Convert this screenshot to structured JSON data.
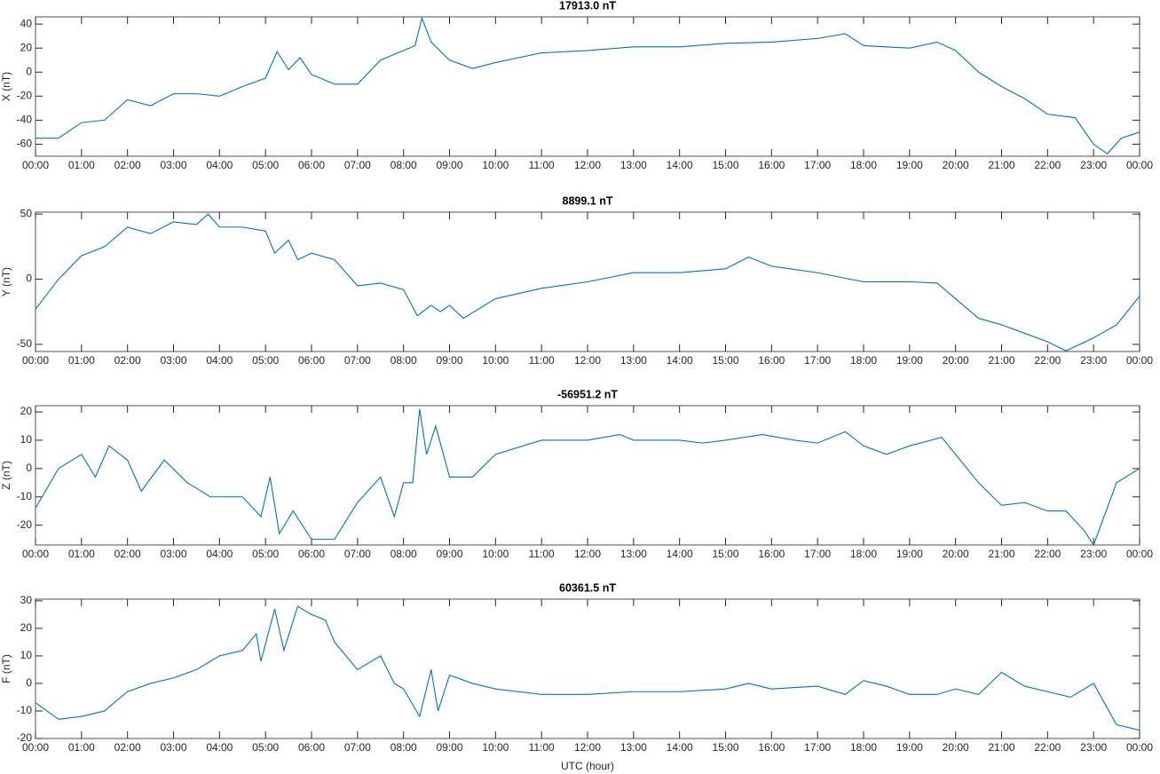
{
  "chart_data": [
    {
      "type": "line",
      "title": "17913.0 nT",
      "ylabel": "X (nT)",
      "color": "#0072bd",
      "x": [
        0,
        0.5,
        1,
        1.5,
        2,
        2.5,
        3,
        3.5,
        4,
        4.5,
        5,
        5.25,
        5.5,
        5.75,
        6,
        6.5,
        7,
        7.5,
        8,
        8.25,
        8.4,
        8.6,
        9,
        9.5,
        10,
        10.5,
        11,
        12,
        13,
        14,
        15,
        16,
        17,
        17.6,
        18,
        19,
        19.6,
        20,
        20.5,
        21,
        21.5,
        22,
        22.6,
        23,
        23.3,
        23.6,
        24
      ],
      "series": [
        {
          "name": "X",
          "color": "#0072bd",
          "values": [
            -55,
            -55,
            -42,
            -40,
            -23,
            -28,
            -18,
            -18,
            -20,
            -12,
            -5,
            17,
            2,
            12,
            -2,
            -10,
            -10,
            10,
            18,
            22,
            45,
            25,
            10,
            3,
            8,
            12,
            16,
            18,
            21,
            21,
            24,
            25,
            28,
            32,
            22,
            20,
            25,
            18,
            0,
            -12,
            -22,
            -35,
            -38,
            -60,
            -68,
            -55,
            -50
          ]
        }
      ],
      "xlim": [
        0,
        24
      ],
      "ylim": [
        -70,
        46
      ],
      "yticks": [
        -60,
        -40,
        -20,
        0,
        20,
        40
      ],
      "xticks": [
        {
          "value": 0,
          "label": "00:00"
        },
        {
          "value": 1,
          "label": "01:00"
        },
        {
          "value": 2,
          "label": "02:00"
        },
        {
          "value": 3,
          "label": "03:00"
        },
        {
          "value": 4,
          "label": "04:00"
        },
        {
          "value": 5,
          "label": "05:00"
        },
        {
          "value": 6,
          "label": "06:00"
        },
        {
          "value": 7,
          "label": "07:00"
        },
        {
          "value": 8,
          "label": "08:00"
        },
        {
          "value": 9,
          "label": "09:00"
        },
        {
          "value": 10,
          "label": "10:00"
        },
        {
          "value": 11,
          "label": "11:00"
        },
        {
          "value": 12,
          "label": "12:00"
        },
        {
          "value": 13,
          "label": "13:00"
        },
        {
          "value": 14,
          "label": "14:00"
        },
        {
          "value": 15,
          "label": "15:00"
        },
        {
          "value": 16,
          "label": "16:00"
        },
        {
          "value": 17,
          "label": "17:00"
        },
        {
          "value": 18,
          "label": "18:00"
        },
        {
          "value": 19,
          "label": "19:00"
        },
        {
          "value": 20,
          "label": "20:00"
        },
        {
          "value": 21,
          "label": "21:00"
        },
        {
          "value": 22,
          "label": "22:00"
        },
        {
          "value": 23,
          "label": "23:00"
        },
        {
          "value": 24,
          "label": "00:00"
        }
      ]
    },
    {
      "type": "line",
      "title": "8899.1 nT",
      "ylabel": "Y (nT)",
      "color": "#0072bd",
      "x": [
        0,
        0.5,
        1,
        1.5,
        2,
        2.5,
        3,
        3.5,
        3.75,
        4,
        4.5,
        5,
        5.2,
        5.5,
        5.7,
        6,
        6.5,
        7,
        7.5,
        8,
        8.3,
        8.6,
        8.8,
        9,
        9.3,
        10,
        11,
        12,
        13,
        14,
        15,
        15.5,
        16,
        17,
        18,
        19,
        19.6,
        20,
        20.5,
        21,
        22,
        22.4,
        23,
        23.5,
        24
      ],
      "series": [
        {
          "name": "Y",
          "color": "#0072bd",
          "values": [
            -23,
            0,
            18,
            25,
            40,
            35,
            44,
            42,
            50,
            40,
            40,
            37,
            20,
            30,
            15,
            20,
            15,
            -5,
            -3,
            -8,
            -28,
            -20,
            -25,
            -20,
            -30,
            -15,
            -7,
            -2,
            5,
            5,
            8,
            17,
            10,
            5,
            -2,
            -2,
            -3,
            -15,
            -30,
            -35,
            -48,
            -55,
            -45,
            -35,
            -13
          ]
        }
      ],
      "xlim": [
        0,
        24
      ],
      "ylim": [
        -55.5,
        51.5
      ],
      "yticks": [
        -50,
        0,
        50
      ],
      "xticks": [
        {
          "value": 0,
          "label": "00:00"
        },
        {
          "value": 1,
          "label": "01:00"
        },
        {
          "value": 2,
          "label": "02:00"
        },
        {
          "value": 3,
          "label": "03:00"
        },
        {
          "value": 4,
          "label": "04:00"
        },
        {
          "value": 5,
          "label": "05:00"
        },
        {
          "value": 6,
          "label": "06:00"
        },
        {
          "value": 7,
          "label": "07:00"
        },
        {
          "value": 8,
          "label": "08:00"
        },
        {
          "value": 9,
          "label": "09:00"
        },
        {
          "value": 10,
          "label": "10:00"
        },
        {
          "value": 11,
          "label": "11:00"
        },
        {
          "value": 12,
          "label": "12:00"
        },
        {
          "value": 13,
          "label": "13:00"
        },
        {
          "value": 14,
          "label": "14:00"
        },
        {
          "value": 15,
          "label": "15:00"
        },
        {
          "value": 16,
          "label": "16:00"
        },
        {
          "value": 17,
          "label": "17:00"
        },
        {
          "value": 18,
          "label": "18:00"
        },
        {
          "value": 19,
          "label": "19:00"
        },
        {
          "value": 20,
          "label": "20:00"
        },
        {
          "value": 21,
          "label": "21:00"
        },
        {
          "value": 22,
          "label": "22:00"
        },
        {
          "value": 23,
          "label": "23:00"
        },
        {
          "value": 24,
          "label": "00:00"
        }
      ]
    },
    {
      "type": "line",
      "title": "-56951.2 nT",
      "ylabel": "Z (nT)",
      "color": "#0072bd",
      "x": [
        0,
        0.5,
        1,
        1.3,
        1.6,
        2,
        2.3,
        2.8,
        3.3,
        3.8,
        4.5,
        4.9,
        5.1,
        5.3,
        5.6,
        6,
        6.5,
        7,
        7.5,
        7.8,
        8,
        8.2,
        8.35,
        8.5,
        8.7,
        9,
        9.5,
        10,
        11,
        12,
        12.7,
        13,
        14,
        14.5,
        15,
        15.8,
        16.5,
        17,
        17.6,
        18,
        18.5,
        19,
        19.7,
        20,
        20.5,
        21,
        21.5,
        22,
        22.4,
        22.8,
        23,
        23.5,
        24
      ],
      "series": [
        {
          "name": "Z",
          "color": "#0072bd",
          "values": [
            -14,
            0,
            5,
            -3,
            8,
            3,
            -8,
            3,
            -5,
            -10,
            -10,
            -17,
            -3,
            -23,
            -15,
            -25,
            -25,
            -12,
            -3,
            -17,
            -5,
            -5,
            21,
            5,
            15,
            -3,
            -3,
            5,
            10,
            10,
            12,
            10,
            10,
            9,
            10,
            12,
            10,
            9,
            13,
            8,
            5,
            8,
            11,
            5,
            -5,
            -13,
            -12,
            -15,
            -15,
            -22,
            -27,
            -5,
            0
          ]
        }
      ],
      "xlim": [
        0,
        24
      ],
      "ylim": [
        -27,
        22.2
      ],
      "yticks": [
        -20,
        -10,
        0,
        10,
        20
      ],
      "xticks": [
        {
          "value": 0,
          "label": "00:00"
        },
        {
          "value": 1,
          "label": "01:00"
        },
        {
          "value": 2,
          "label": "02:00"
        },
        {
          "value": 3,
          "label": "03:00"
        },
        {
          "value": 4,
          "label": "04:00"
        },
        {
          "value": 5,
          "label": "05:00"
        },
        {
          "value": 6,
          "label": "06:00"
        },
        {
          "value": 7,
          "label": "07:00"
        },
        {
          "value": 8,
          "label": "08:00"
        },
        {
          "value": 9,
          "label": "09:00"
        },
        {
          "value": 10,
          "label": "10:00"
        },
        {
          "value": 11,
          "label": "11:00"
        },
        {
          "value": 12,
          "label": "12:00"
        },
        {
          "value": 13,
          "label": "13:00"
        },
        {
          "value": 14,
          "label": "14:00"
        },
        {
          "value": 15,
          "label": "15:00"
        },
        {
          "value": 16,
          "label": "16:00"
        },
        {
          "value": 17,
          "label": "17:00"
        },
        {
          "value": 18,
          "label": "18:00"
        },
        {
          "value": 19,
          "label": "19:00"
        },
        {
          "value": 20,
          "label": "20:00"
        },
        {
          "value": 21,
          "label": "21:00"
        },
        {
          "value": 22,
          "label": "22:00"
        },
        {
          "value": 23,
          "label": "23:00"
        },
        {
          "value": 24,
          "label": "00:00"
        }
      ]
    },
    {
      "type": "line",
      "title": "60361.5 nT",
      "ylabel": "F (nT)",
      "xlabel": "UTC (hour)",
      "color": "#0072bd",
      "x": [
        0,
        0.5,
        1,
        1.5,
        2,
        2.5,
        3,
        3.5,
        4,
        4.5,
        4.8,
        4.9,
        5.2,
        5.4,
        5.7,
        6,
        6.3,
        6.5,
        7,
        7.5,
        7.8,
        8,
        8.35,
        8.6,
        8.75,
        9,
        9.5,
        10,
        11,
        12,
        13,
        14,
        15,
        15.5,
        16,
        17,
        17.6,
        18,
        18.5,
        19,
        19.6,
        20,
        20.5,
        21,
        21.5,
        22,
        22.5,
        23,
        23.5,
        24
      ],
      "series": [
        {
          "name": "F",
          "color": "#0072bd",
          "values": [
            -7,
            -13,
            -12,
            -10,
            -3,
            0,
            2,
            5,
            10,
            12,
            18,
            8,
            27,
            12,
            28,
            25,
            23,
            15,
            5,
            10,
            0,
            -2,
            -12,
            5,
            -10,
            3,
            0,
            -2,
            -4,
            -4,
            -3,
            -3,
            -2,
            0,
            -2,
            -1,
            -4,
            1,
            -1,
            -4,
            -4,
            -2,
            -4,
            4,
            -1,
            -3,
            -5,
            0,
            -15,
            -17
          ]
        }
      ],
      "xlim": [
        0,
        24
      ],
      "ylim": [
        -20,
        30.6
      ],
      "yticks": [
        -20,
        -10,
        0,
        10,
        20,
        30
      ],
      "xticks": [
        {
          "value": 0,
          "label": "00:00"
        },
        {
          "value": 1,
          "label": "01:00"
        },
        {
          "value": 2,
          "label": "02:00"
        },
        {
          "value": 3,
          "label": "03:00"
        },
        {
          "value": 4,
          "label": "04:00"
        },
        {
          "value": 5,
          "label": "05:00"
        },
        {
          "value": 6,
          "label": "06:00"
        },
        {
          "value": 7,
          "label": "07:00"
        },
        {
          "value": 8,
          "label": "08:00"
        },
        {
          "value": 9,
          "label": "09:00"
        },
        {
          "value": 10,
          "label": "10:00"
        },
        {
          "value": 11,
          "label": "11:00"
        },
        {
          "value": 12,
          "label": "12:00"
        },
        {
          "value": 13,
          "label": "13:00"
        },
        {
          "value": 14,
          "label": "14:00"
        },
        {
          "value": 15,
          "label": "15:00"
        },
        {
          "value": 16,
          "label": "16:00"
        },
        {
          "value": 17,
          "label": "17:00"
        },
        {
          "value": 18,
          "label": "18:00"
        },
        {
          "value": 19,
          "label": "19:00"
        },
        {
          "value": 20,
          "label": "20:00"
        },
        {
          "value": 21,
          "label": "21:00"
        },
        {
          "value": 22,
          "label": "22:00"
        },
        {
          "value": 23,
          "label": "23:00"
        },
        {
          "value": 24,
          "label": "00:00"
        }
      ]
    }
  ]
}
